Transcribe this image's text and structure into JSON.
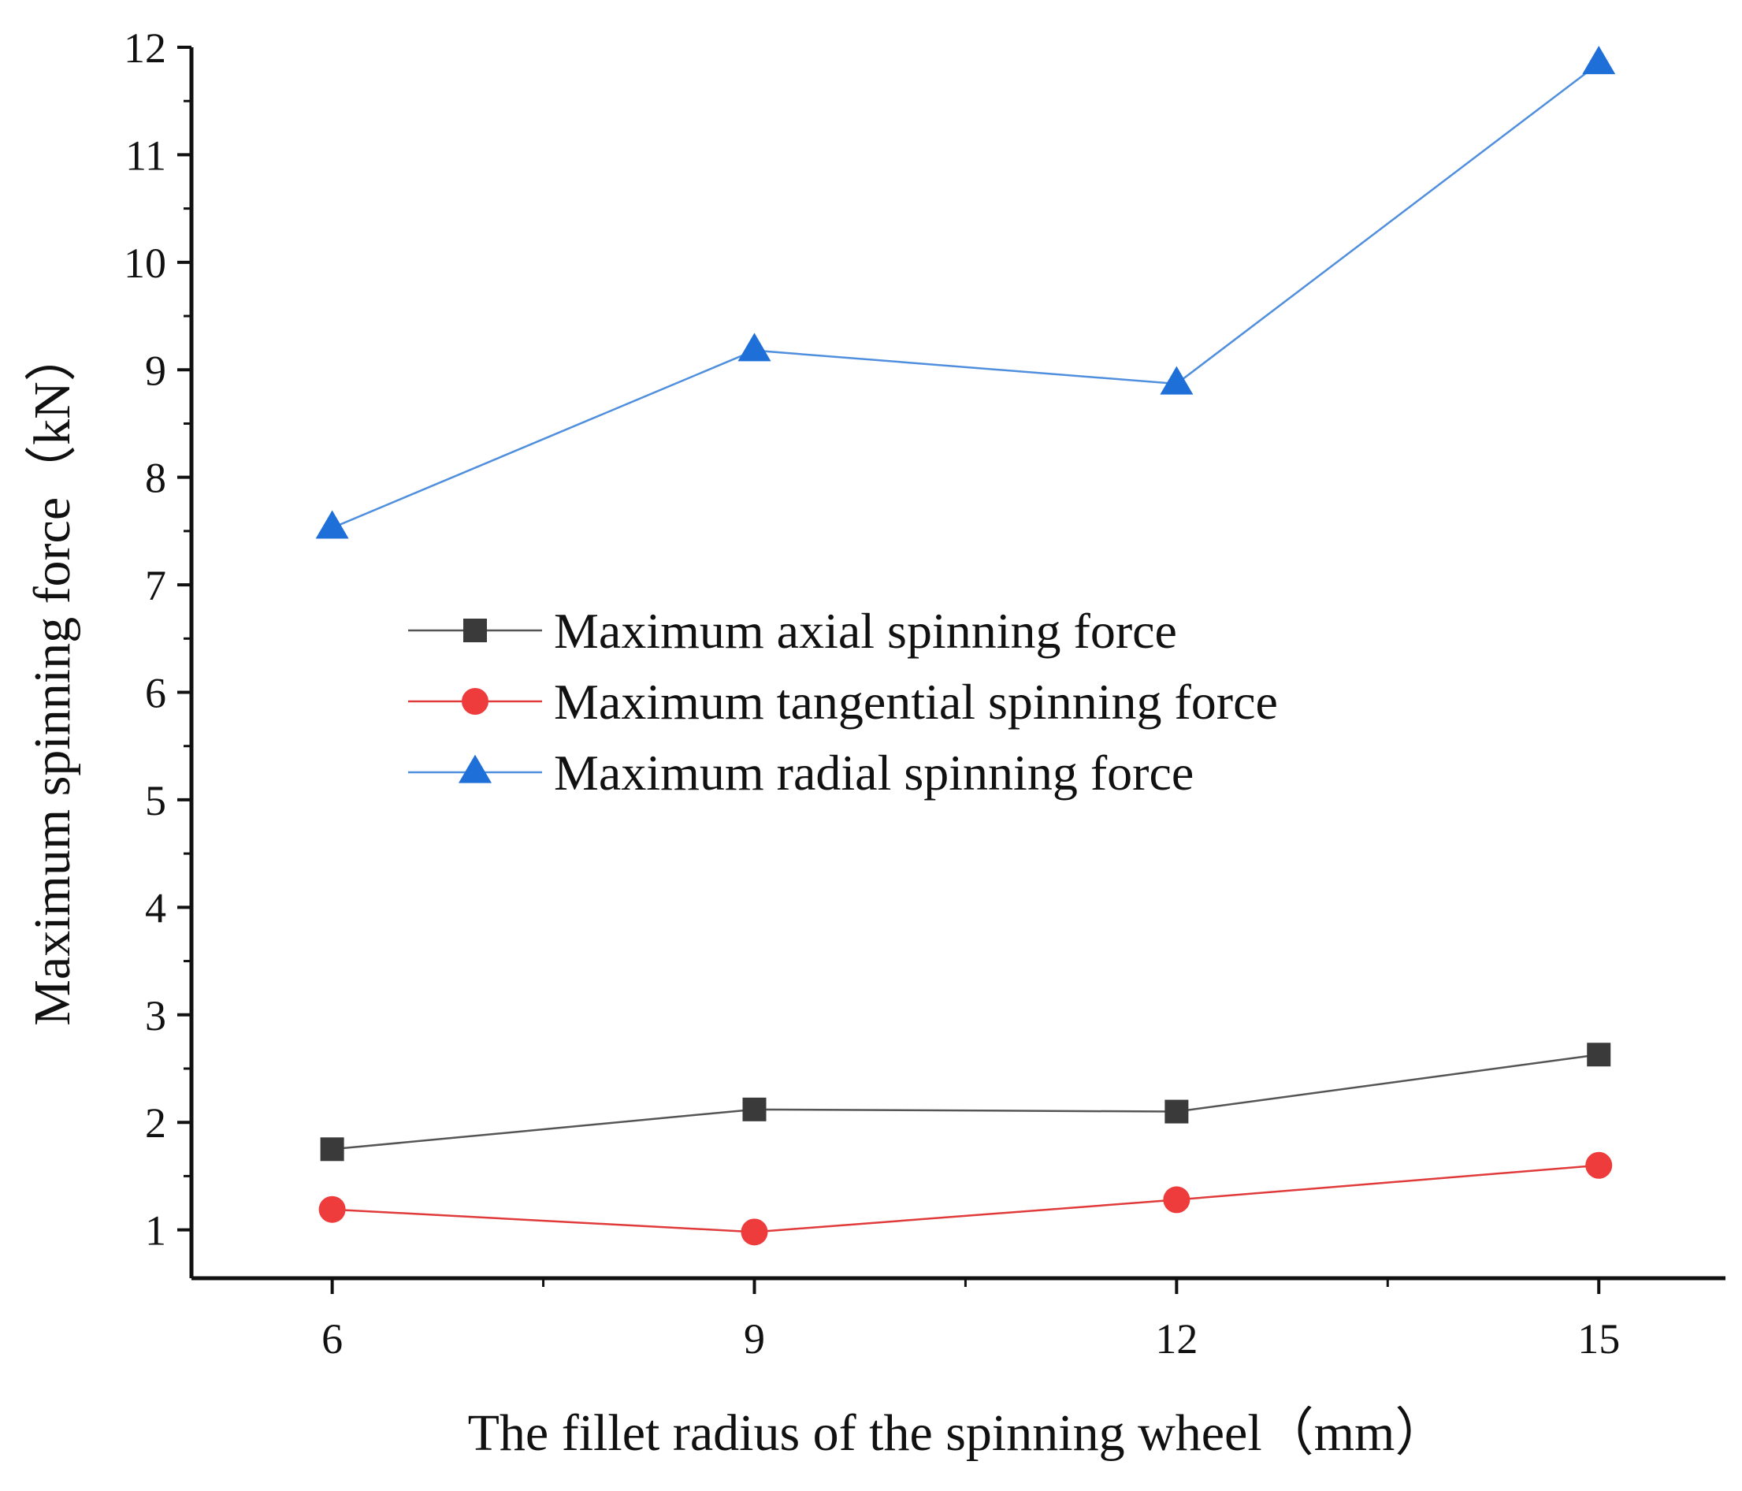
{
  "chart_data": {
    "type": "line",
    "title": "",
    "xlabel": "The fillet radius of the spinning wheel（mm）",
    "ylabel": "Maximum spinning force（kN）",
    "x": [
      6,
      9,
      12,
      15
    ],
    "x_tick_labels": [
      "6",
      "9",
      "12",
      "15"
    ],
    "xlim": [
      5,
      15.9
    ],
    "ylim": [
      0.55,
      12
    ],
    "y_ticks": [
      1,
      2,
      3,
      4,
      5,
      6,
      7,
      8,
      9,
      10,
      11,
      12
    ],
    "y_tick_labels": [
      "1",
      "2",
      "3",
      "4",
      "5",
      "6",
      "7",
      "8",
      "9",
      "10",
      "11",
      "12"
    ],
    "grid": false,
    "legend_position": "center-left",
    "series": [
      {
        "name": "Maximum axial spinning force",
        "marker": "square",
        "color": "#3a3a3a",
        "line_color": "#555555",
        "values": [
          1.75,
          2.12,
          2.1,
          2.63
        ]
      },
      {
        "name": "Maximum tangential spinning force",
        "marker": "circle",
        "color": "#ee3b3b",
        "line_color": "#e03a3a",
        "values": [
          1.19,
          0.98,
          1.28,
          1.6
        ]
      },
      {
        "name": "Maximum radial spinning force",
        "marker": "triangle",
        "color": "#1f6fd8",
        "line_color": "#4f8fdd",
        "values": [
          7.53,
          9.18,
          8.87,
          11.85
        ]
      }
    ]
  }
}
